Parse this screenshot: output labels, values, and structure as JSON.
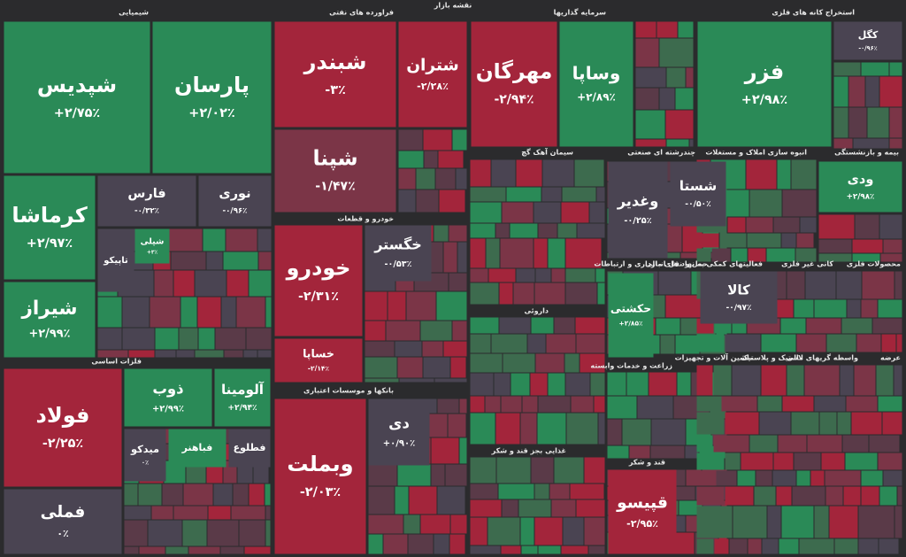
{
  "title": "نقشه بازار",
  "sectors": [
    {
      "name": "شیمیایی",
      "tiles": [
        {
          "symbol": "شپدیس",
          "change": "+۲/۷۵٪",
          "color": "#2a8a57"
        },
        {
          "symbol": "پارسان",
          "change": "+۲/۰۲٪",
          "color": "#2a8a57"
        },
        {
          "symbol": "کرماشا",
          "change": "+۲/۹۷٪",
          "color": "#2a8a57"
        },
        {
          "symbol": "شیراز",
          "change": "+۲/۹۹٪",
          "color": "#2a8a57"
        },
        {
          "symbol": "فارس",
          "change": "-۰/۳۲٪",
          "color": "#4a4452"
        },
        {
          "symbol": "نوری",
          "change": "-۰/۹۶٪",
          "color": "#4a4452"
        },
        {
          "symbol": "تاپیکو",
          "change": "",
          "color": "#4a4452"
        },
        {
          "symbol": "شپلی",
          "change": "+۳٪",
          "color": "#2a8a57"
        }
      ]
    },
    {
      "name": "فلزات اساسی",
      "tiles": [
        {
          "symbol": "فولاد",
          "change": "-۲/۲۵٪",
          "color": "#a3253b"
        },
        {
          "symbol": "فملی",
          "change": "۰٪",
          "color": "#4a4452"
        },
        {
          "symbol": "ذوب",
          "change": "+۲/۹۹٪",
          "color": "#2a8a57"
        },
        {
          "symbol": "آلومینا",
          "change": "+۲/۹۴٪",
          "color": "#2a8a57"
        },
        {
          "symbol": "میدکو",
          "change": "۰٪",
          "color": "#4a4452"
        },
        {
          "symbol": "فباهنر",
          "change": "",
          "color": "#2a8a57"
        },
        {
          "symbol": "فطلوع",
          "change": "",
          "color": "#4a4452"
        }
      ]
    },
    {
      "name": "فراورده های نفتی",
      "tiles": [
        {
          "symbol": "شبندر",
          "change": "-۳٪",
          "color": "#a3253b"
        },
        {
          "symbol": "شپنا",
          "change": "-۱/۴۷٪",
          "color": "#7b3547"
        },
        {
          "symbol": "شتران",
          "change": "-۲/۲۸٪",
          "color": "#a3253b"
        }
      ]
    },
    {
      "name": "خودرو و قطعات",
      "tiles": [
        {
          "symbol": "خودرو",
          "change": "-۲/۳۱٪",
          "color": "#a3253b"
        },
        {
          "symbol": "خساپا",
          "change": "-۲/۱۴٪",
          "color": "#a3253b"
        },
        {
          "symbol": "خگستر",
          "change": "-۰/۵۳٪",
          "color": "#4a4452"
        }
      ]
    },
    {
      "name": "بانکها و موسسات اعتباری",
      "tiles": [
        {
          "symbol": "وبملت",
          "change": "-۲/۰۳٪",
          "color": "#a3253b"
        },
        {
          "symbol": "دی",
          "change": "+۰/۹۰٪",
          "color": "#4a4452"
        }
      ]
    },
    {
      "name": "سرمایه گذاریها",
      "tiles": [
        {
          "symbol": "مهرگان",
          "change": "-۲/۹۴٪",
          "color": "#a3253b"
        },
        {
          "symbol": "وساپا",
          "change": "+۲/۸۹٪",
          "color": "#2a8a57"
        }
      ]
    },
    {
      "name": "سیمان آهک گچ",
      "tiles": []
    },
    {
      "name": "داروئی",
      "tiles": []
    },
    {
      "name": "غذایی بجز قند و شکر",
      "tiles": []
    },
    {
      "name": "چندرشته ای صنعتی",
      "tiles": [
        {
          "symbol": "وغدیر",
          "change": "-۰/۲۵٪",
          "color": "#4a4452"
        },
        {
          "symbol": "شستا",
          "change": "-۰/۵۰٪",
          "color": "#4a4452"
        }
      ]
    },
    {
      "name": "حمل و نقل انبارداری و ارتباطات",
      "tiles": [
        {
          "symbol": "حکشتی",
          "change": "+۲/۸۵٪",
          "color": "#2a8a57"
        }
      ]
    },
    {
      "name": "زراعت و خدمات وابسته",
      "tiles": []
    },
    {
      "name": "قند و شکر",
      "tiles": [
        {
          "symbol": "قپیسو",
          "change": "-۲/۹۵٪",
          "color": "#a3253b"
        }
      ]
    },
    {
      "name": "استخراج کانه های فلزی",
      "tiles": [
        {
          "symbol": "فزر",
          "change": "+۲/۹۸٪",
          "color": "#2a8a57"
        },
        {
          "symbol": "کگل",
          "change": "-۰/۹۶٪",
          "color": "#4a4452"
        }
      ]
    },
    {
      "name": "انبوه سازی املاک و مستغلات",
      "tiles": []
    },
    {
      "name": "بیمه و بازنشستگی",
      "tiles": [
        {
          "symbol": "ودی",
          "change": "+۲/۹۸٪",
          "color": "#2a8a57"
        }
      ]
    },
    {
      "name": "فعالیتهای کمکی به نهاد های مالی",
      "tiles": [
        {
          "symbol": "کالا",
          "change": "-۰/۹۷٪",
          "color": "#4a4452"
        }
      ]
    },
    {
      "name": "کانی غیر فلزی",
      "tiles": []
    },
    {
      "name": "محصولات فلزی",
      "tiles": []
    },
    {
      "name": "ماشین آلات و تجهیزات",
      "tiles": []
    },
    {
      "name": "لاستیک و پلاستیک",
      "tiles": []
    },
    {
      "name": "واسطه گریهای مالی",
      "tiles": []
    },
    {
      "name": "عرضه",
      "tiles": []
    }
  ]
}
